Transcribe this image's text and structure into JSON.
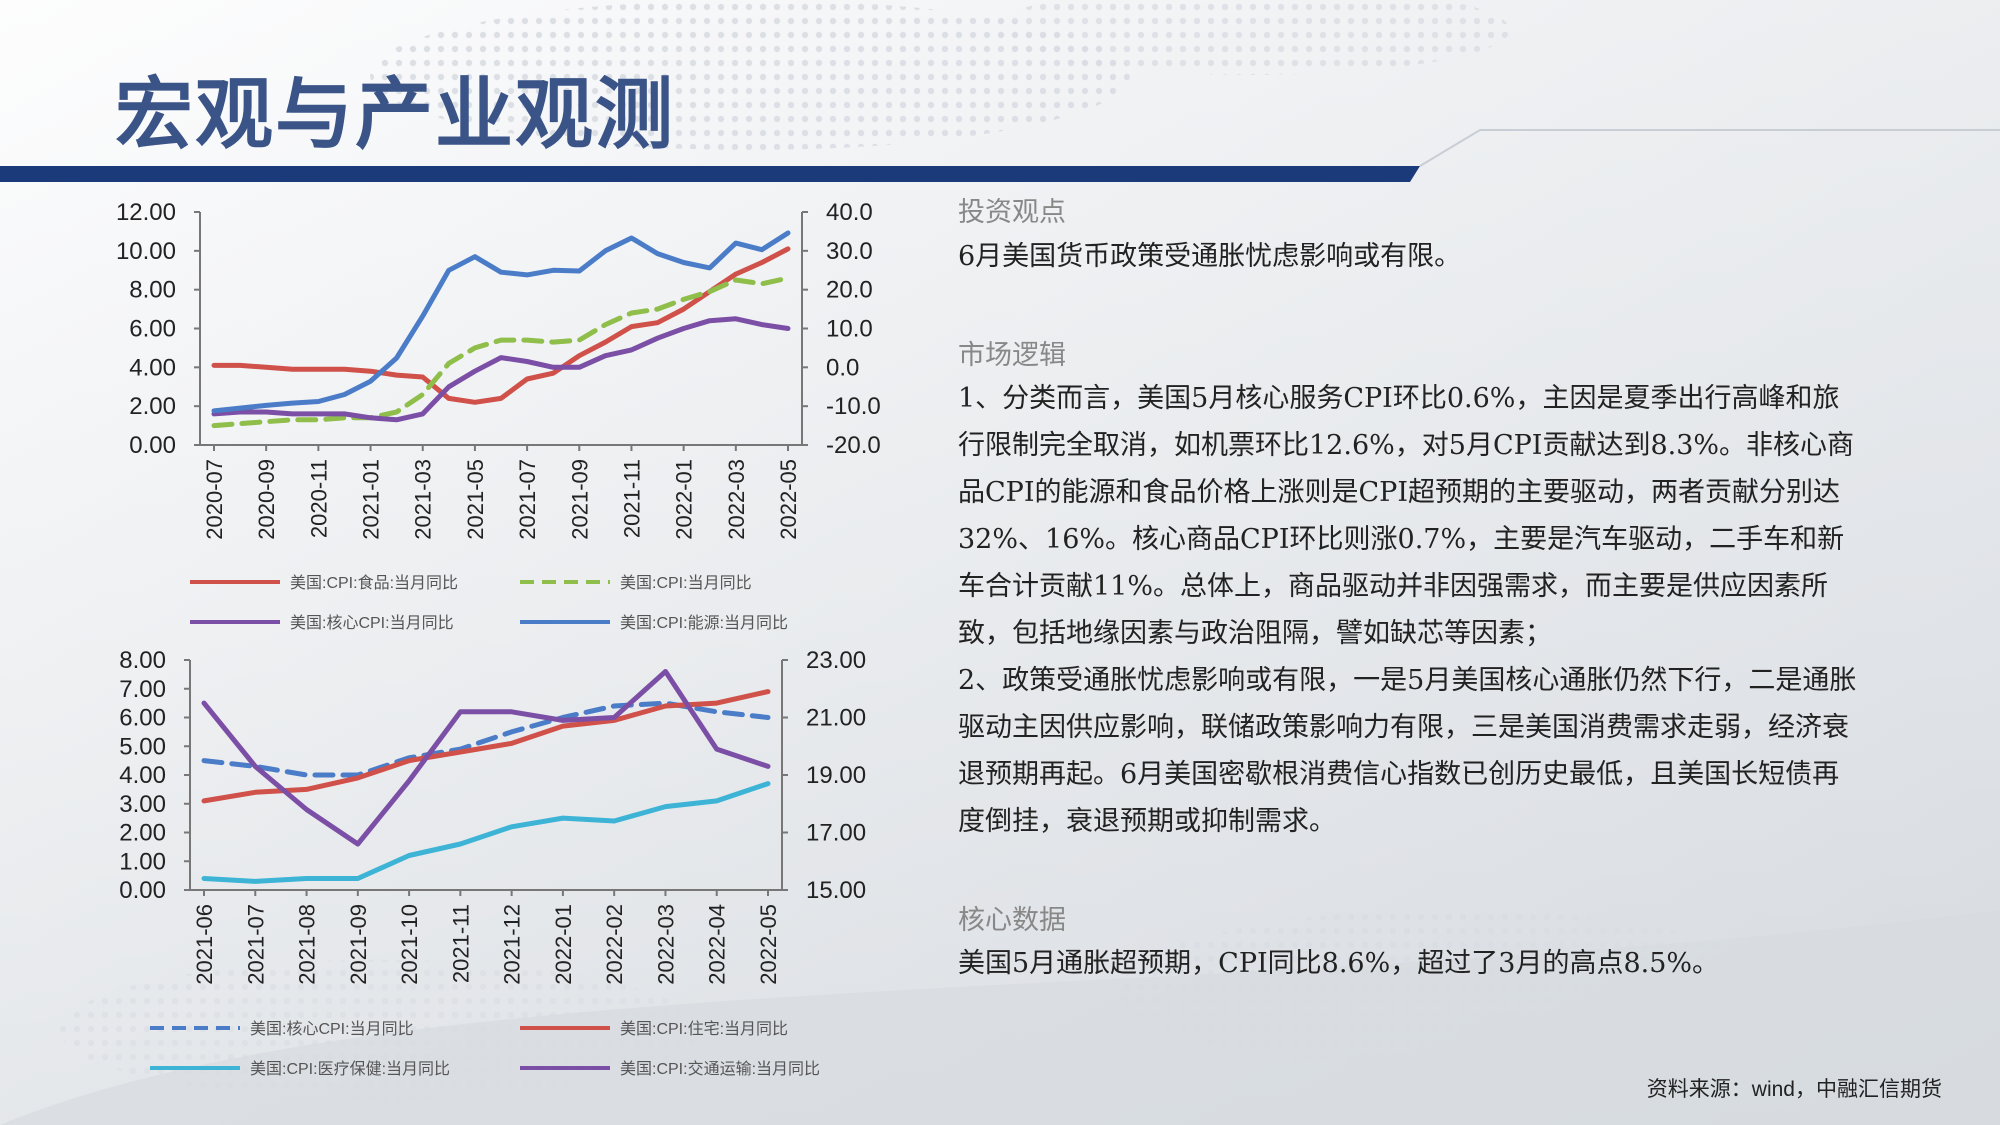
{
  "page": {
    "title": "宏观与产业观测",
    "source": "资料来源：wind，中融汇信期货"
  },
  "sections": [
    {
      "heading": "投资观点",
      "paragraphs": [
        "6月美国货币政策受通胀忧虑影响或有限。"
      ]
    },
    {
      "heading": "市场逻辑",
      "paragraphs": [
        "1、分类而言，美国5月核心服务CPI环比0.6%，主因是夏季出行高峰和旅行限制完全取消，如机票环比12.6%，对5月CPI贡献达到8.3%。非核心商品CPI的能源和食品价格上涨则是CPI超预期的主要驱动，两者贡献分别达32%、16%。核心商品CPI环比则涨0.7%，主要是汽车驱动，二手车和新车合计贡献11%。总体上，商品驱动并非因强需求，而主要是供应因素所致，包括地缘因素与政治阻隔，譬如缺芯等因素；",
        "2、政策受通胀忧虑影响或有限，一是5月美国核心通胀仍然下行，二是通胀驱动主因供应影响，联储政策影响力有限，三是美国消费需求走弱，经济衰退预期再起。6月美国密歇根消费信心指数已创历史最低，且美国长短债再度倒挂，衰退预期或抑制需求。"
      ]
    },
    {
      "heading": "核心数据",
      "paragraphs": [
        "美国5月通胀超预期，CPI同比8.6%，超过了3月的高点8.5%。"
      ]
    }
  ],
  "chart_data": [
    {
      "type": "line",
      "categories": [
        "2020-07",
        "2020-08",
        "2020-09",
        "2020-10",
        "2020-11",
        "2020-12",
        "2021-01",
        "2021-02",
        "2021-03",
        "2021-04",
        "2021-05",
        "2021-06",
        "2021-07",
        "2021-08",
        "2021-09",
        "2021-10",
        "2021-11",
        "2021-12",
        "2022-01",
        "2022-02",
        "2022-03",
        "2022-04",
        "2022-05"
      ],
      "x_tick_labels": [
        "2020-07",
        "2020-09",
        "2020-11",
        "2021-01",
        "2021-03",
        "2021-05",
        "2021-07",
        "2021-09",
        "2021-11",
        "2022-01",
        "2022-03",
        "2022-05"
      ],
      "left_ylim": [
        0,
        12
      ],
      "left_ticks": [
        "0.00",
        "2.00",
        "4.00",
        "6.00",
        "8.00",
        "10.00",
        "12.00"
      ],
      "right_ylim": [
        -20,
        40
      ],
      "right_ticks": [
        "-20.0",
        "-10.0",
        "0.0",
        "10.0",
        "20.0",
        "30.0",
        "40.0"
      ],
      "series": [
        {
          "name": "美国:CPI:食品:当月同比",
          "color": "#d0504a",
          "dash": "solid",
          "axis": "left",
          "values": [
            4.1,
            4.1,
            4.0,
            3.9,
            3.9,
            3.9,
            3.8,
            3.6,
            3.5,
            2.4,
            2.2,
            2.4,
            3.4,
            3.7,
            4.6,
            5.3,
            6.1,
            6.3,
            7.0,
            7.9,
            8.8,
            9.4,
            10.1
          ]
        },
        {
          "name": "美国:CPI:当月同比",
          "color": "#8fbe4a",
          "dash": "dashed",
          "axis": "left",
          "values": [
            1.0,
            1.1,
            1.2,
            1.3,
            1.3,
            1.4,
            1.4,
            1.7,
            2.6,
            4.2,
            5.0,
            5.4,
            5.4,
            5.3,
            5.4,
            6.2,
            6.8,
            7.0,
            7.5,
            7.9,
            8.5,
            8.3,
            8.6
          ]
        },
        {
          "name": "美国:核心CPI:当月同比",
          "color": "#7b4fa5",
          "dash": "solid",
          "axis": "left",
          "values": [
            1.6,
            1.7,
            1.7,
            1.6,
            1.6,
            1.6,
            1.4,
            1.3,
            1.6,
            3.0,
            3.8,
            4.5,
            4.3,
            4.0,
            4.0,
            4.6,
            4.9,
            5.5,
            6.0,
            6.4,
            6.5,
            6.2,
            6.0
          ]
        },
        {
          "name": "美国:CPI:能源:当月同比",
          "color": "#4a7cc8",
          "dash": "solid",
          "axis": "right",
          "values": [
            -11.2,
            -10.5,
            -9.8,
            -9.2,
            -8.8,
            -7.0,
            -3.6,
            2.4,
            13.2,
            25.0,
            28.5,
            24.5,
            23.8,
            25.0,
            24.8,
            30.0,
            33.3,
            29.3,
            27.0,
            25.6,
            32.0,
            30.3,
            34.6
          ]
        }
      ]
    },
    {
      "type": "line",
      "categories": [
        "2021-06",
        "2021-07",
        "2021-08",
        "2021-09",
        "2021-10",
        "2021-11",
        "2021-12",
        "2022-01",
        "2022-02",
        "2022-03",
        "2022-04",
        "2022-05"
      ],
      "left_ylim": [
        0,
        8
      ],
      "left_ticks": [
        "0.00",
        "1.00",
        "2.00",
        "3.00",
        "4.00",
        "5.00",
        "6.00",
        "7.00",
        "8.00"
      ],
      "right_ylim": [
        15,
        23
      ],
      "right_ticks": [
        "15.00",
        "17.00",
        "19.00",
        "21.00",
        "23.00"
      ],
      "series": [
        {
          "name": "美国:核心CPI:当月同比",
          "color": "#4a7cc8",
          "dash": "dashed",
          "axis": "left",
          "values": [
            4.5,
            4.3,
            4.0,
            4.0,
            4.6,
            4.9,
            5.5,
            6.0,
            6.4,
            6.5,
            6.2,
            6.0
          ]
        },
        {
          "name": "美国:CPI:住宅:当月同比",
          "color": "#d0504a",
          "dash": "solid",
          "axis": "left",
          "values": [
            3.1,
            3.4,
            3.5,
            3.9,
            4.5,
            4.8,
            5.1,
            5.7,
            5.9,
            6.4,
            6.5,
            6.9
          ]
        },
        {
          "name": "美国:CPI:医疗保健:当月同比",
          "color": "#3db4d6",
          "dash": "solid",
          "axis": "left",
          "values": [
            0.4,
            0.3,
            0.4,
            0.4,
            1.2,
            1.6,
            2.2,
            2.5,
            2.4,
            2.9,
            3.1,
            3.7
          ]
        },
        {
          "name": "美国:CPI:交通运输:当月同比",
          "color": "#7b4fa5",
          "dash": "solid",
          "axis": "right",
          "values": [
            21.5,
            19.3,
            17.8,
            16.6,
            18.8,
            21.2,
            21.2,
            20.9,
            21.0,
            22.6,
            19.9,
            19.3
          ]
        }
      ]
    }
  ],
  "colors": {
    "title": "#3b5488",
    "band": "#1b3a7a"
  }
}
